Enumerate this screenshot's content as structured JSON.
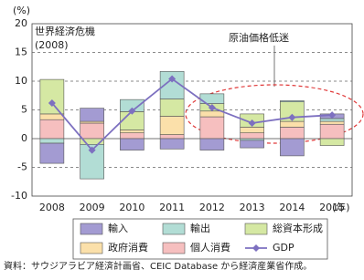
{
  "chart_data": {
    "type": "bar",
    "stacked": true,
    "y_unit": "(%)",
    "x_unit": "(年)",
    "annotations": [
      "世界経済危機",
      "(2008)",
      "原油価格低迷"
    ],
    "source": "資料：サウジアラビア経済計画省、CEIC Database から経済産業省作成。",
    "categories": [
      "2008",
      "2009",
      "2010",
      "2011",
      "2012",
      "2013",
      "2014",
      "2015"
    ],
    "series": [
      {
        "name": "輸入",
        "color": "#a39bd2",
        "values": [
          -3.5,
          2.3,
          -2.0,
          -1.8,
          -2.0,
          -1.3,
          -3.0,
          0.8
        ]
      },
      {
        "name": "輸出",
        "color": "#b2ddd5",
        "values": [
          -0.8,
          -6.0,
          2.1,
          4.8,
          1.7,
          -0.3,
          0.2,
          0.5
        ]
      },
      {
        "name": "総資本形成",
        "color": "#d5e8a3",
        "values": [
          6.0,
          -1.0,
          3.2,
          3.0,
          1.3,
          2.3,
          3.4,
          -1.2
        ]
      },
      {
        "name": "政府消費",
        "color": "#fbe0aa",
        "values": [
          1.0,
          0.3,
          0.5,
          3.2,
          1.0,
          1.0,
          1.0,
          0.5
        ]
      },
      {
        "name": "個人消費",
        "color": "#f6bfbf",
        "values": [
          3.3,
          2.7,
          1.0,
          0.7,
          3.8,
          1.0,
          2.0,
          2.5
        ]
      },
      {
        "name": "GDP",
        "type": "line",
        "color": "#7d70c0",
        "values": [
          6.2,
          -2.0,
          4.8,
          10.4,
          5.4,
          2.7,
          3.7,
          4.1
        ]
      }
    ],
    "ylim": [
      -10,
      20
    ],
    "yticks": [
      -10,
      -5,
      0,
      5,
      10,
      15,
      20
    ],
    "grid": true
  }
}
